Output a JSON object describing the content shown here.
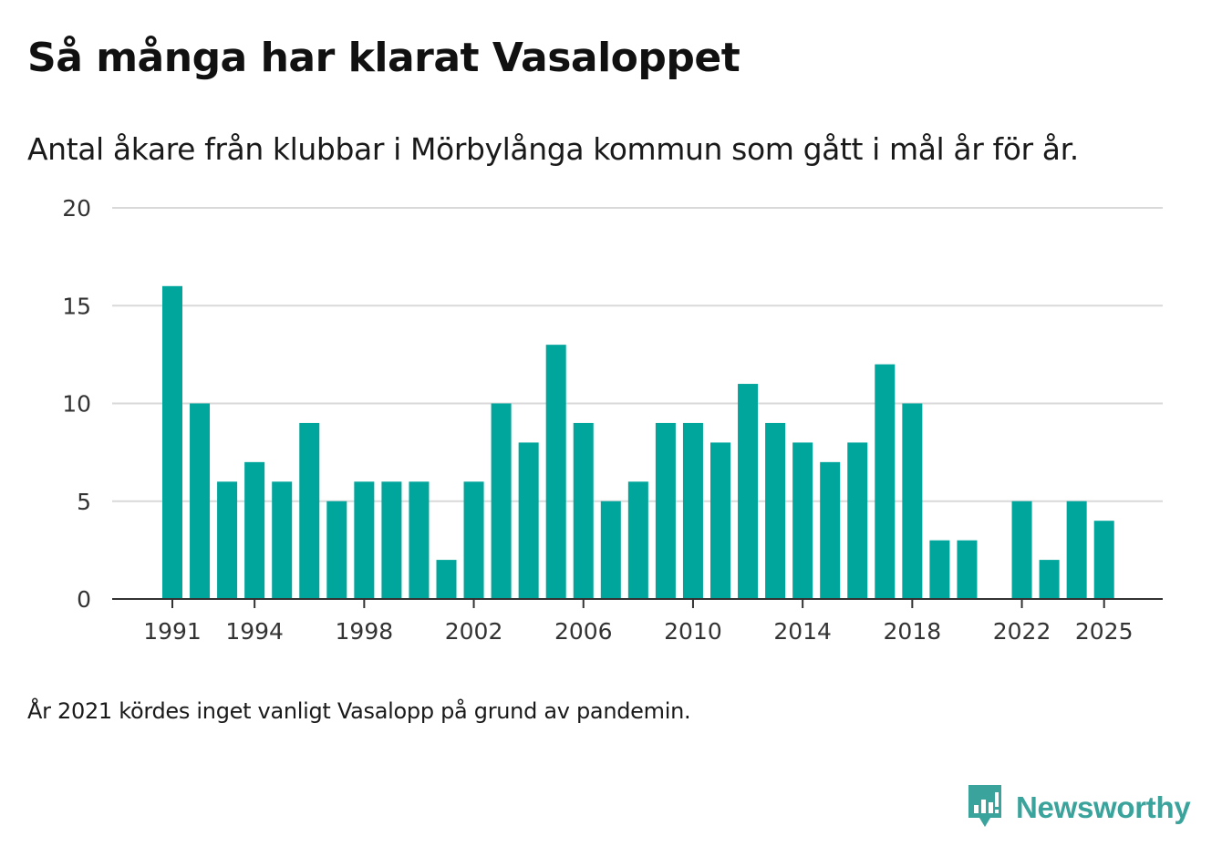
{
  "header": {
    "title": "Så många har klarat Vasaloppet",
    "subtitle": "Antal åkare från klubbar i Mörbylånga kommun som gått i mål år för år."
  },
  "footer": {
    "note": "År 2021 kördes inget vanligt Vasalopp på grund av pandemin.",
    "brand": "Newsworthy"
  },
  "colors": {
    "bar": "#00a59b",
    "grid": "#d9d9d9",
    "axis": "#333333",
    "brand": "#3aa39b"
  },
  "chart_data": {
    "type": "bar",
    "title": "Så många har klarat Vasaloppet",
    "subtitle": "Antal åkare från klubbar i Mörbylånga kommun som gått i mål år för år.",
    "xlabel": "",
    "ylabel": "",
    "ylim": [
      0,
      20
    ],
    "yticks": [
      0,
      5,
      10,
      15,
      20
    ],
    "xticks": [
      1991,
      1994,
      1998,
      2002,
      2006,
      2010,
      2014,
      2018,
      2022,
      2025
    ],
    "grid": true,
    "legend": "none",
    "x": [
      1991,
      1992,
      1993,
      1994,
      1995,
      1996,
      1997,
      1998,
      1999,
      2000,
      2001,
      2002,
      2003,
      2004,
      2005,
      2006,
      2007,
      2008,
      2009,
      2010,
      2011,
      2012,
      2013,
      2014,
      2015,
      2016,
      2017,
      2018,
      2019,
      2020,
      2021,
      2022,
      2023,
      2024,
      2025
    ],
    "values": [
      16,
      10,
      6,
      7,
      6,
      9,
      5,
      6,
      6,
      6,
      2,
      6,
      10,
      8,
      13,
      9,
      5,
      6,
      9,
      9,
      8,
      11,
      9,
      8,
      7,
      8,
      12,
      10,
      3,
      3,
      null,
      5,
      2,
      5,
      4
    ]
  }
}
